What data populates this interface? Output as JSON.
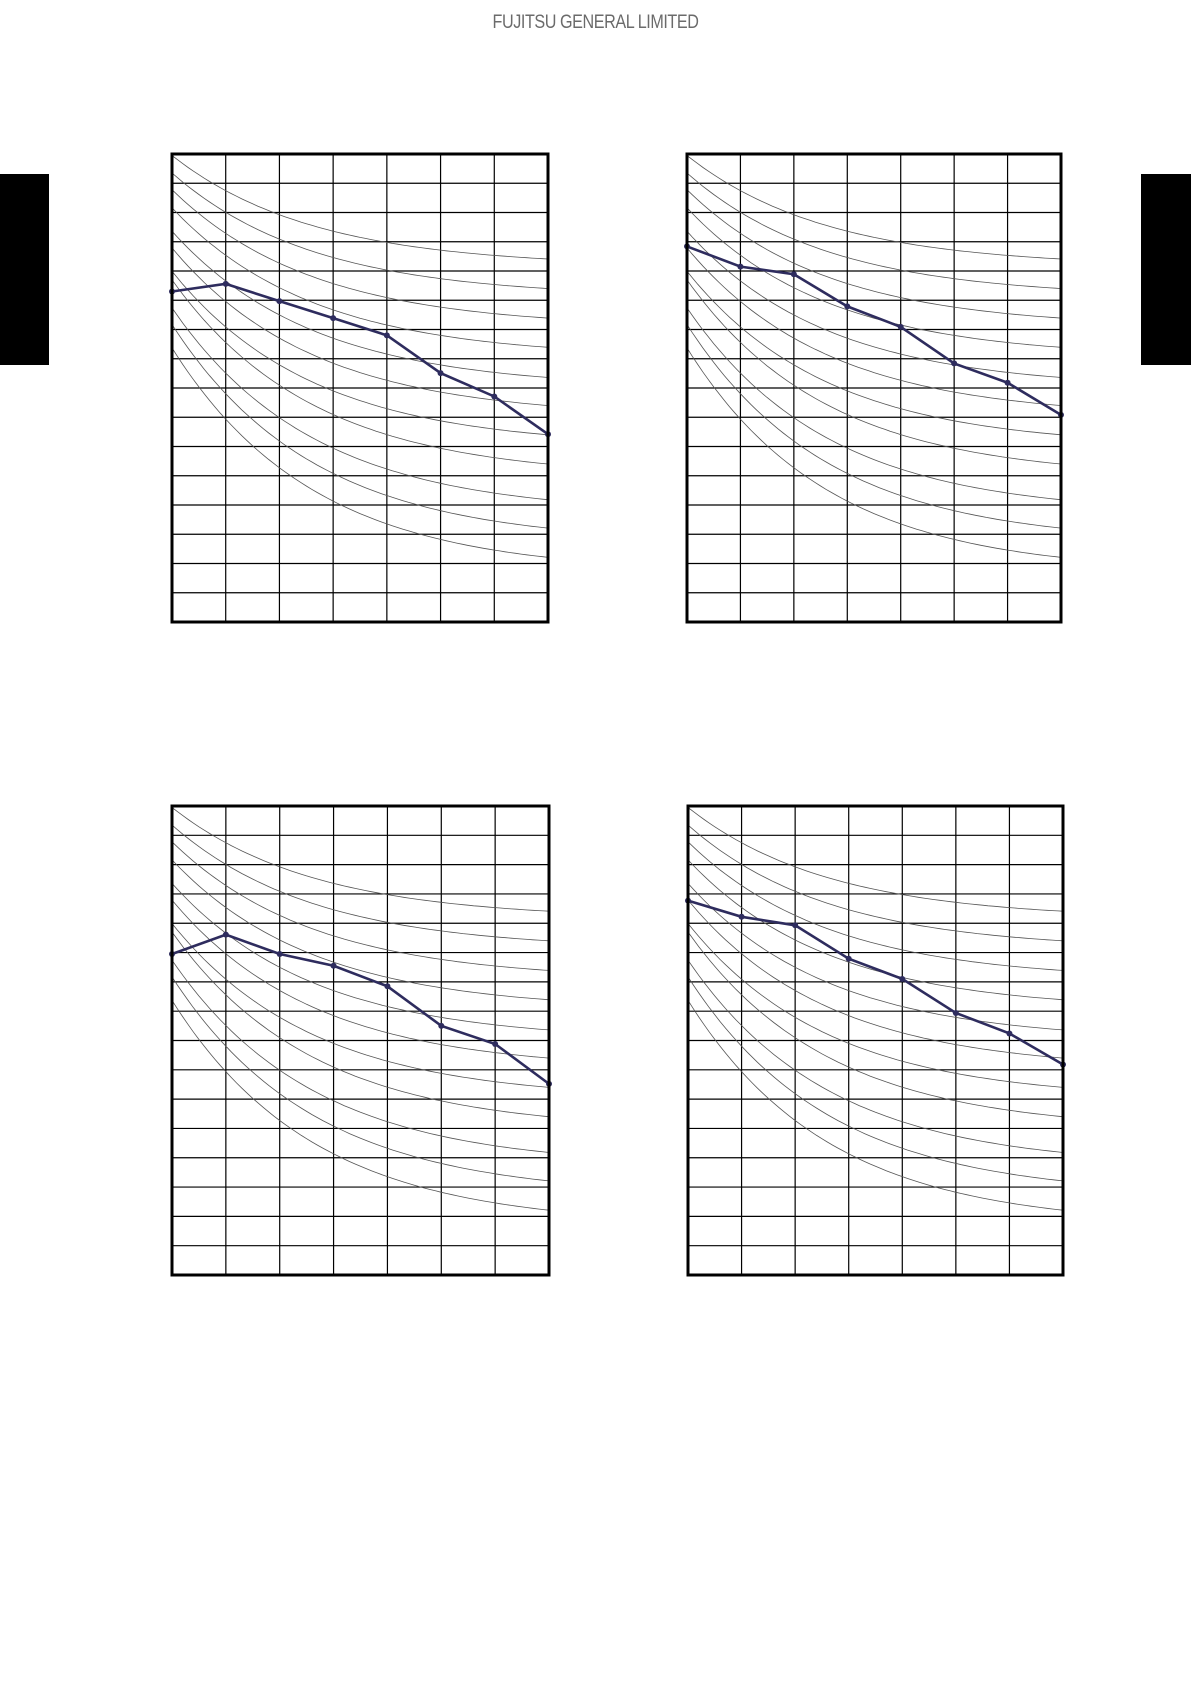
{
  "header": {
    "brand": "FUJITSU GENERAL LIMITED"
  },
  "colors": {
    "series": "#2e2c5e",
    "grid": "#000000",
    "curves": "#555555",
    "tab": "#000000"
  },
  "chart_data": [
    {
      "type": "line",
      "grid": true,
      "xlim": [
        0,
        7
      ],
      "ylim": [
        0,
        16
      ],
      "x": [
        0,
        1,
        2,
        3,
        4,
        5,
        6,
        7
      ],
      "series": [
        {
          "values": [
            11.3,
            11.56,
            10.97,
            10.39,
            9.8,
            8.51,
            7.71,
            6.42
          ]
        }
      ],
      "reference_curves": {
        "start": [
          15.95,
          15.35,
          14.78,
          14.16,
          13.36,
          12.79,
          11.99,
          11.7,
          10.74,
          10.17,
          9.37
        ],
        "end": [
          12.41,
          11.4,
          10.39,
          9.39,
          8.36,
          7.4,
          6.4,
          5.4,
          4.18,
          3.21,
          2.21
        ]
      }
    },
    {
      "type": "line",
      "grid": true,
      "xlim": [
        0,
        7
      ],
      "ylim": [
        0,
        16
      ],
      "x": [
        0,
        1,
        2,
        3,
        4,
        5,
        6,
        7
      ],
      "series": [
        {
          "values": [
            12.84,
            12.15,
            11.89,
            10.79,
            10.09,
            8.84,
            8.18,
            7.08
          ]
        }
      ],
      "reference_curves": {
        "start": [
          15.95,
          15.35,
          14.78,
          14.16,
          13.36,
          12.79,
          11.99,
          11.7,
          10.74,
          10.17,
          9.37
        ],
        "end": [
          12.41,
          11.4,
          10.39,
          9.39,
          8.36,
          7.4,
          6.4,
          5.4,
          4.18,
          3.21,
          2.21
        ]
      }
    },
    {
      "type": "line",
      "grid": true,
      "xlim": [
        0,
        7
      ],
      "ylim": [
        0,
        16
      ],
      "x": [
        0,
        1,
        2,
        3,
        4,
        5,
        6,
        7
      ],
      "series": [
        {
          "values": [
            10.95,
            11.61,
            10.95,
            10.55,
            9.85,
            8.5,
            7.88,
            6.52
          ]
        }
      ],
      "reference_curves": {
        "start": [
          15.95,
          15.35,
          14.78,
          14.16,
          13.36,
          12.79,
          11.99,
          11.7,
          10.74,
          10.17,
          9.37
        ],
        "end": [
          12.41,
          11.4,
          10.39,
          9.39,
          8.36,
          7.4,
          6.4,
          5.4,
          4.18,
          3.21,
          2.21
        ]
      }
    },
    {
      "type": "line",
      "grid": true,
      "xlim": [
        0,
        7
      ],
      "ylim": [
        0,
        16
      ],
      "x": [
        0,
        1,
        2,
        3,
        4,
        5,
        6,
        7
      ],
      "series": [
        {
          "values": [
            12.77,
            12.22,
            11.93,
            10.79,
            10.1,
            8.94,
            8.24,
            7.18
          ]
        }
      ],
      "reference_curves": {
        "start": [
          15.95,
          15.35,
          14.78,
          14.16,
          13.36,
          12.79,
          11.99,
          11.7,
          10.74,
          10.17,
          9.37
        ],
        "end": [
          12.41,
          11.4,
          10.39,
          9.39,
          8.36,
          7.4,
          6.4,
          5.4,
          4.18,
          3.21,
          2.21
        ]
      }
    }
  ]
}
